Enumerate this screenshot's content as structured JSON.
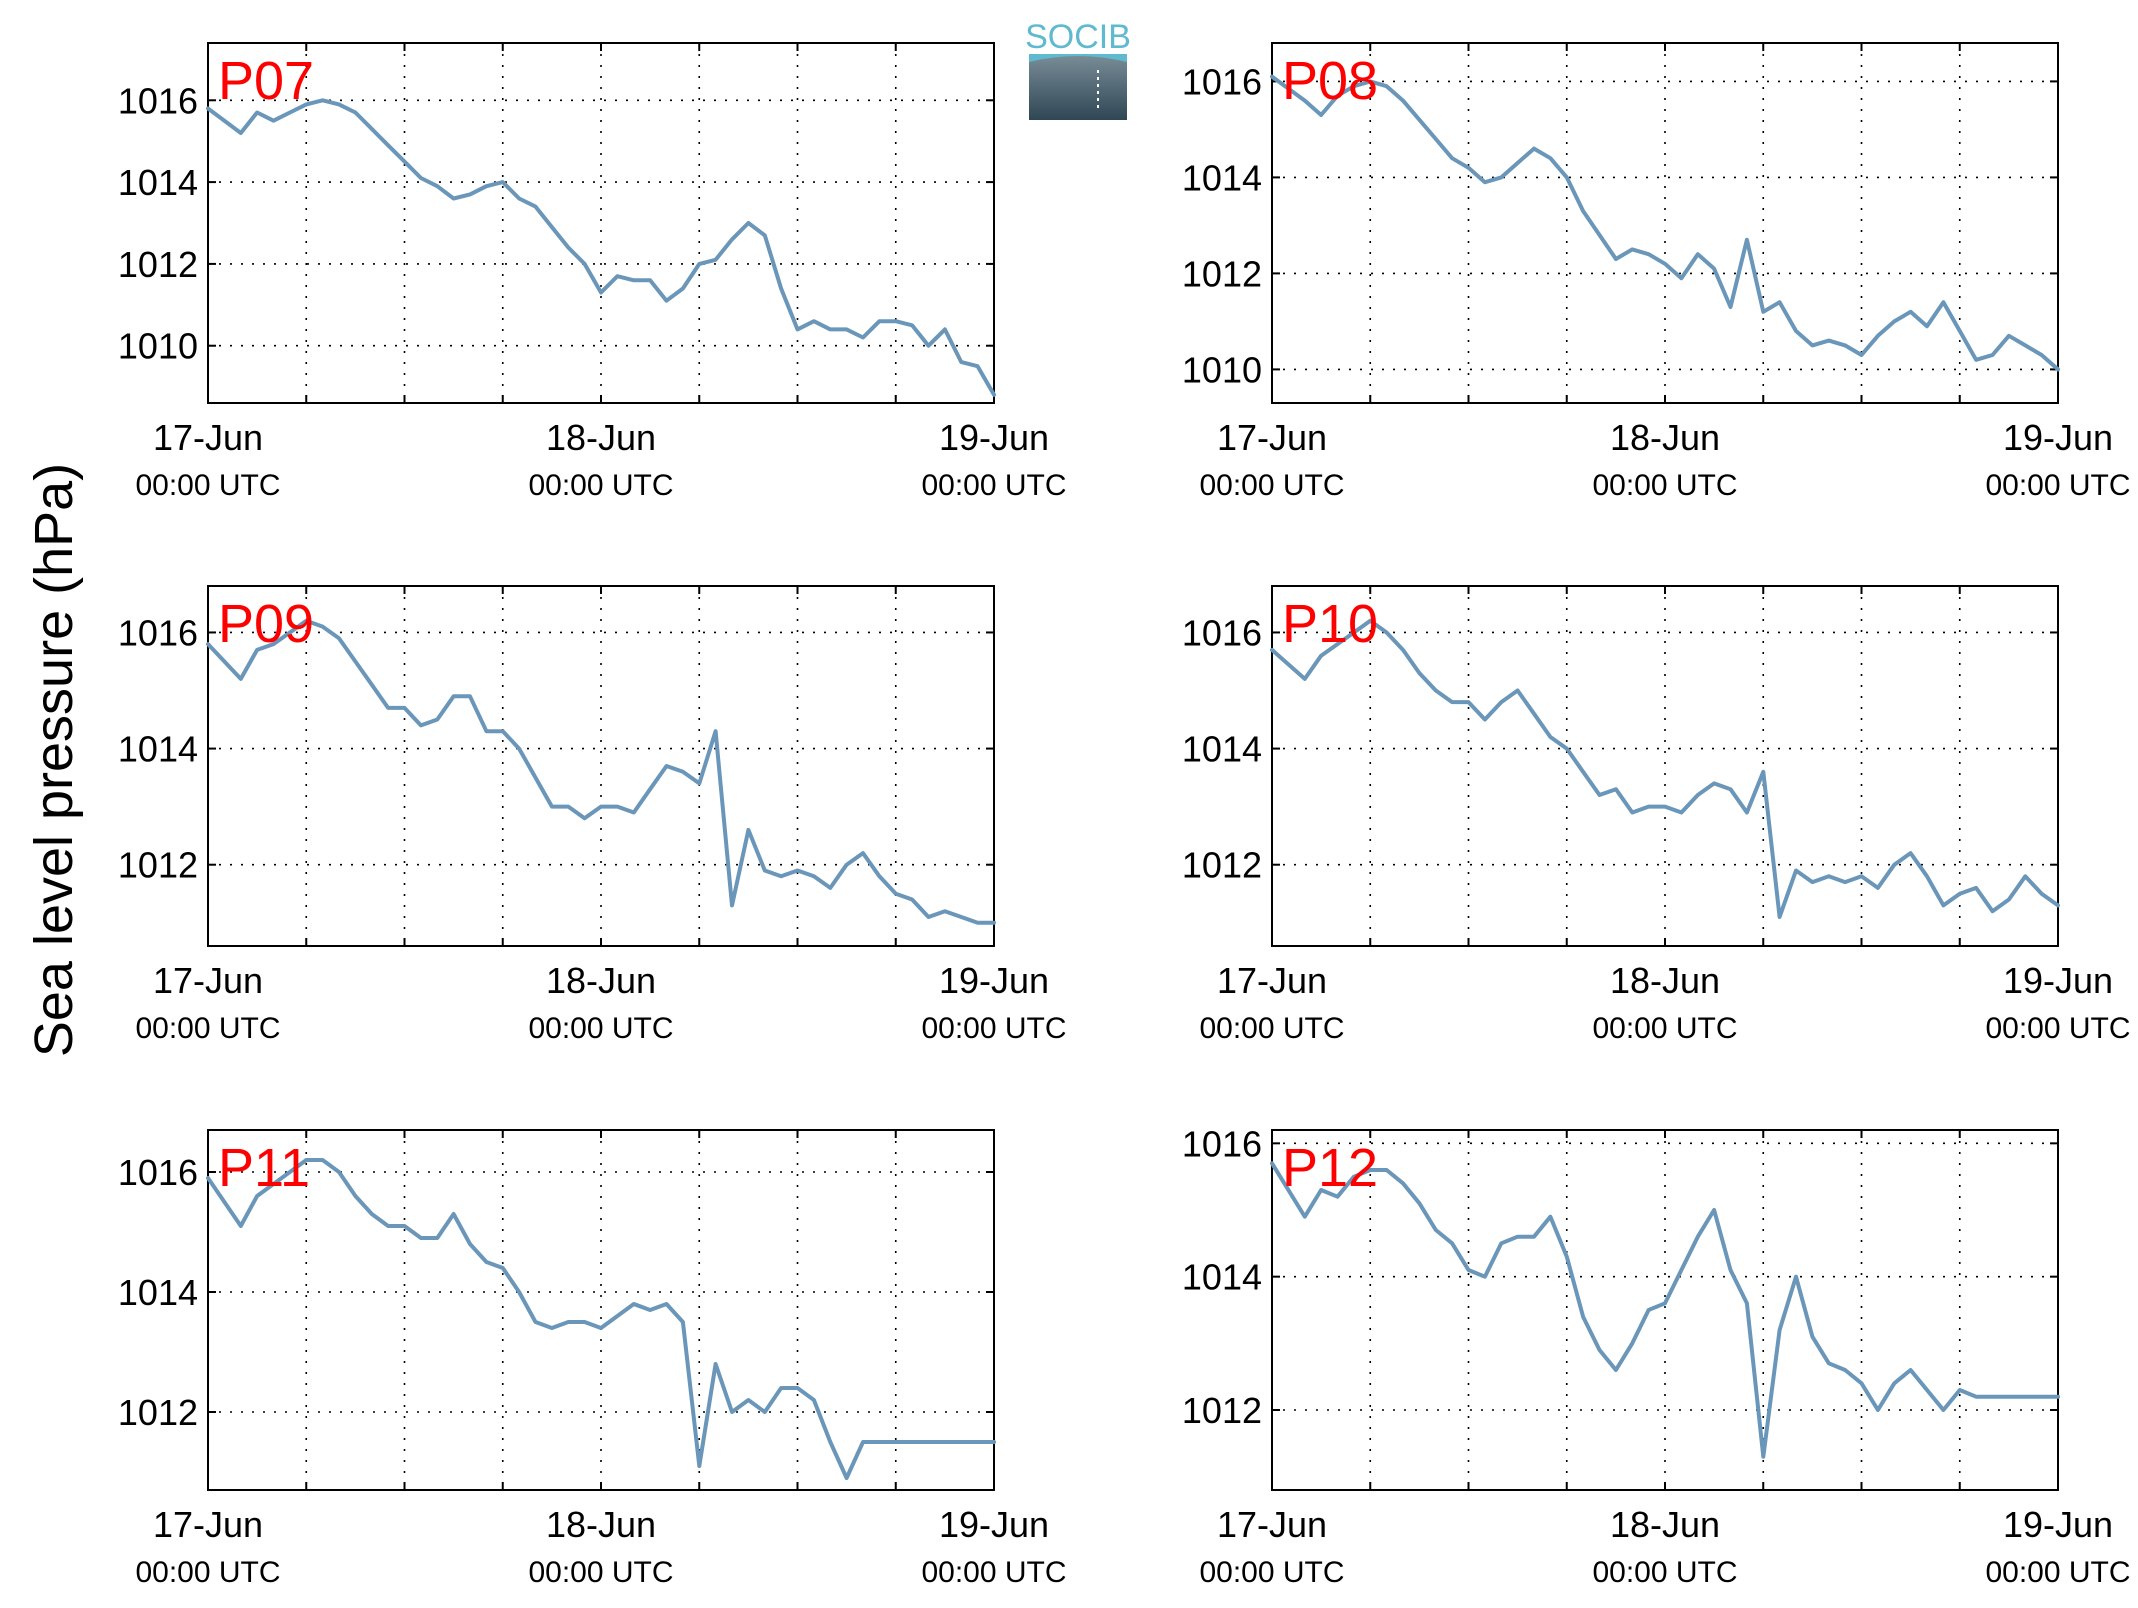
{
  "figure": {
    "ylabel": "Sea level pressure (hPa)",
    "logo_text": "SOCIB",
    "x_tick_dates": [
      "17-Jun",
      "18-Jun",
      "19-Jun"
    ],
    "x_tick_time": "00:00 UTC"
  },
  "colors": {
    "line": "#6a96b9",
    "station_label": "#ff0000",
    "logo_top": "#5fb9cf"
  },
  "chart_data": [
    {
      "type": "line",
      "station": "P07",
      "xlim": [
        "17-Jun 00:00",
        "19-Jun 00:00"
      ],
      "ylim": [
        1008.6,
        1017.4
      ],
      "yticks": [
        1010,
        1012,
        1014,
        1016
      ],
      "grid": true,
      "series": [
        {
          "hours": [
            0,
            2,
            3,
            4,
            5,
            6,
            7,
            8,
            9,
            10,
            11,
            12,
            13,
            14,
            15,
            16,
            17,
            18,
            19,
            20,
            21,
            22,
            23,
            24,
            25,
            26,
            27,
            28,
            29,
            30,
            31,
            32,
            33,
            34,
            35,
            36,
            37,
            38,
            39,
            40,
            41,
            42,
            43,
            44,
            45,
            46,
            47,
            48
          ],
          "values": [
            1015.8,
            1015.2,
            1015.7,
            1015.5,
            1015.7,
            1015.9,
            1016.0,
            1015.9,
            1015.7,
            1015.3,
            1014.9,
            1014.5,
            1014.1,
            1013.9,
            1013.6,
            1013.7,
            1013.9,
            1014.0,
            1013.6,
            1013.4,
            1012.9,
            1012.4,
            1012.0,
            1011.3,
            1011.7,
            1011.6,
            1011.6,
            1011.1,
            1011.4,
            1012.0,
            1012.1,
            1012.6,
            1013.0,
            1012.7,
            1011.4,
            1010.4,
            1010.6,
            1010.4,
            1010.4,
            1010.2,
            1010.6,
            1010.6,
            1010.5,
            1010.0,
            1010.4,
            1009.6,
            1009.5,
            1008.8
          ]
        }
      ]
    },
    {
      "type": "line",
      "station": "P08",
      "xlim": [
        "17-Jun 00:00",
        "19-Jun 00:00"
      ],
      "ylim": [
        1009.3,
        1016.8
      ],
      "yticks": [
        1010,
        1012,
        1014,
        1016
      ],
      "grid": true,
      "series": [
        {
          "hours": [
            0,
            2,
            3,
            4,
            5,
            6,
            7,
            8,
            9,
            10,
            11,
            12,
            13,
            14,
            15,
            16,
            17,
            18,
            19,
            20,
            21,
            22,
            23,
            24,
            25,
            26,
            27,
            28,
            29,
            30,
            31,
            32,
            33,
            34,
            35,
            36,
            37,
            38,
            39,
            40,
            41,
            42,
            43,
            44,
            45,
            46,
            47,
            48
          ],
          "values": [
            1016.1,
            1015.6,
            1015.3,
            1015.7,
            1015.9,
            1016.0,
            1015.9,
            1015.6,
            1015.2,
            1014.8,
            1014.4,
            1014.2,
            1013.9,
            1014.0,
            1014.3,
            1014.6,
            1014.4,
            1014.0,
            1013.3,
            1012.8,
            1012.3,
            1012.5,
            1012.4,
            1012.2,
            1011.9,
            1012.4,
            1012.1,
            1011.3,
            1012.7,
            1011.2,
            1011.4,
            1010.8,
            1010.5,
            1010.6,
            1010.5,
            1010.3,
            1010.7,
            1011.0,
            1011.2,
            1010.9,
            1011.4,
            1010.8,
            1010.2,
            1010.3,
            1010.7,
            1010.5,
            1010.3,
            1010.0
          ]
        }
      ]
    },
    {
      "type": "line",
      "station": "P09",
      "xlim": [
        "17-Jun 00:00",
        "19-Jun 00:00"
      ],
      "ylim": [
        1010.6,
        1016.8
      ],
      "yticks": [
        1012,
        1014,
        1016
      ],
      "grid": true,
      "series": [
        {
          "hours": [
            0,
            2,
            3,
            4,
            5,
            6,
            7,
            8,
            9,
            10,
            11,
            12,
            13,
            14,
            15,
            16,
            17,
            18,
            19,
            20,
            21,
            22,
            23,
            24,
            25,
            26,
            27,
            28,
            29,
            30,
            31,
            32,
            33,
            34,
            35,
            36,
            37,
            38,
            39,
            40,
            41,
            42,
            43,
            44,
            45,
            46,
            47,
            48
          ],
          "values": [
            1015.8,
            1015.2,
            1015.7,
            1015.8,
            1016.0,
            1016.2,
            1016.1,
            1015.9,
            1015.5,
            1015.1,
            1014.7,
            1014.7,
            1014.4,
            1014.5,
            1014.9,
            1014.9,
            1014.3,
            1014.3,
            1014.0,
            1013.5,
            1013.0,
            1013.0,
            1012.8,
            1013.0,
            1013.0,
            1012.9,
            1013.3,
            1013.7,
            1013.6,
            1013.4,
            1014.3,
            1011.3,
            1012.6,
            1011.9,
            1011.8,
            1011.9,
            1011.8,
            1011.6,
            1012.0,
            1012.2,
            1011.8,
            1011.5,
            1011.4,
            1011.1,
            1011.2,
            1011.1,
            1011.0,
            1011.0
          ]
        }
      ]
    },
    {
      "type": "line",
      "station": "P10",
      "xlim": [
        "17-Jun 00:00",
        "19-Jun 00:00"
      ],
      "ylim": [
        1010.6,
        1016.8
      ],
      "yticks": [
        1012,
        1014,
        1016
      ],
      "grid": true,
      "series": [
        {
          "hours": [
            0,
            2,
            3,
            4,
            5,
            6,
            7,
            8,
            9,
            10,
            11,
            12,
            13,
            14,
            15,
            16,
            17,
            18,
            19,
            20,
            21,
            22,
            23,
            24,
            25,
            26,
            27,
            28,
            29,
            30,
            31,
            32,
            33,
            34,
            35,
            36,
            37,
            38,
            39,
            40,
            41,
            42,
            43,
            44,
            45,
            46,
            47,
            48
          ],
          "values": [
            1015.7,
            1015.2,
            1015.6,
            1015.8,
            1016.0,
            1016.2,
            1016.0,
            1015.7,
            1015.3,
            1015.0,
            1014.8,
            1014.8,
            1014.5,
            1014.8,
            1015.0,
            1014.6,
            1014.2,
            1014.0,
            1013.6,
            1013.2,
            1013.3,
            1012.9,
            1013.0,
            1013.0,
            1012.9,
            1013.2,
            1013.4,
            1013.3,
            1012.9,
            1013.6,
            1011.1,
            1011.9,
            1011.7,
            1011.8,
            1011.7,
            1011.8,
            1011.6,
            1012.0,
            1012.2,
            1011.8,
            1011.3,
            1011.5,
            1011.6,
            1011.2,
            1011.4,
            1011.8,
            1011.5,
            1011.3
          ]
        }
      ]
    },
    {
      "type": "line",
      "station": "P11",
      "xlim": [
        "17-Jun 00:00",
        "19-Jun 00:00"
      ],
      "ylim": [
        1010.7,
        1016.7
      ],
      "yticks": [
        1012,
        1014,
        1016
      ],
      "grid": true,
      "series": [
        {
          "hours": [
            0,
            2,
            3,
            4,
            5,
            6,
            7,
            8,
            9,
            10,
            11,
            12,
            13,
            14,
            15,
            16,
            17,
            18,
            19,
            20,
            21,
            22,
            23,
            24,
            25,
            26,
            27,
            28,
            29,
            30,
            31,
            32,
            33,
            34,
            35,
            36,
            37,
            38,
            39,
            40,
            41,
            42,
            43,
            44,
            45,
            46,
            47,
            48
          ],
          "values": [
            1015.9,
            1015.1,
            1015.6,
            1015.8,
            1016.0,
            1016.2,
            1016.2,
            1016.0,
            1015.6,
            1015.3,
            1015.1,
            1015.1,
            1014.9,
            1014.9,
            1015.3,
            1014.8,
            1014.5,
            1014.4,
            1014.0,
            1013.5,
            1013.4,
            1013.5,
            1013.5,
            1013.4,
            1013.6,
            1013.8,
            1013.7,
            1013.8,
            1013.5,
            1011.1,
            1012.8,
            1012.0,
            1012.2,
            1012.0,
            1012.4,
            1012.4,
            1012.2,
            1011.5,
            1010.9,
            1011.5,
            1011.5,
            1011.5,
            1011.5,
            1011.5,
            1011.5,
            1011.5,
            1011.5,
            1011.5
          ]
        }
      ]
    },
    {
      "type": "line",
      "station": "P12",
      "xlim": [
        "17-Jun 00:00",
        "19-Jun 00:00"
      ],
      "ylim": [
        1010.8,
        1016.2
      ],
      "yticks": [
        1012,
        1014,
        1016
      ],
      "grid": true,
      "series": [
        {
          "hours": [
            0,
            2,
            3,
            4,
            5,
            6,
            7,
            8,
            9,
            10,
            11,
            12,
            13,
            14,
            15,
            16,
            17,
            18,
            19,
            20,
            21,
            22,
            23,
            24,
            25,
            26,
            27,
            28,
            29,
            30,
            31,
            32,
            33,
            34,
            35,
            36,
            37,
            38,
            39,
            40,
            41,
            42,
            43,
            44,
            45,
            46,
            47,
            48
          ],
          "values": [
            1015.7,
            1014.9,
            1015.3,
            1015.2,
            1015.5,
            1015.6,
            1015.6,
            1015.4,
            1015.1,
            1014.7,
            1014.5,
            1014.1,
            1014.0,
            1014.5,
            1014.6,
            1014.6,
            1014.9,
            1014.3,
            1013.4,
            1012.9,
            1012.6,
            1013.0,
            1013.5,
            1013.6,
            1014.1,
            1014.6,
            1015.0,
            1014.1,
            1013.6,
            1011.3,
            1013.2,
            1014.0,
            1013.1,
            1012.7,
            1012.6,
            1012.4,
            1012.0,
            1012.4,
            1012.6,
            1012.3,
            1012.0,
            1012.3,
            1012.2,
            1012.2,
            1012.2,
            1012.2,
            1012.2,
            1012.2
          ]
        }
      ]
    }
  ]
}
